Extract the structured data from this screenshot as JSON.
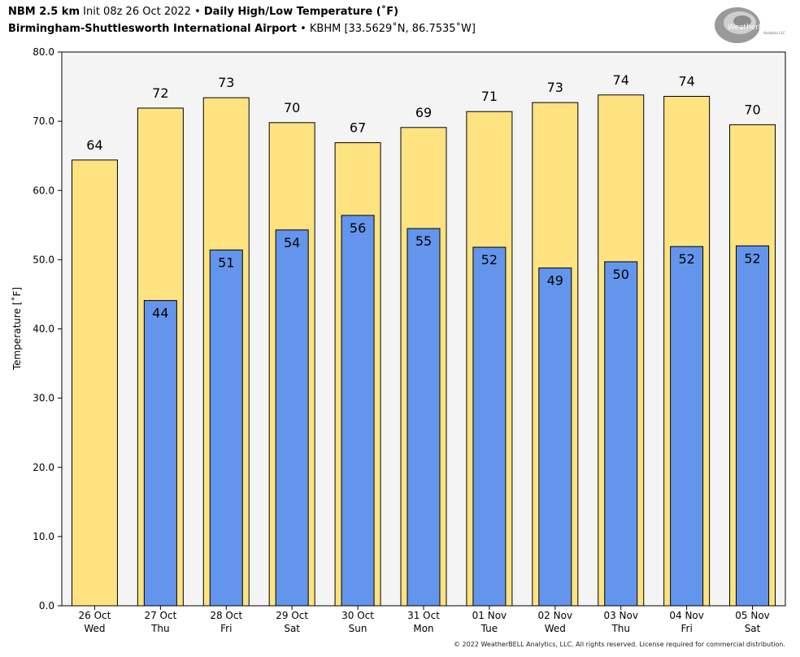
{
  "header": {
    "model": "NBM 2.5 km",
    "init": "Init 08z 26 Oct 2022",
    "bullet": "•",
    "product": "Daily High/Low Temperature (˚F)",
    "station_name": "Birmingham-Shuttlesworth International Airport",
    "station_info": "KBHM [33.5629˚N, 86.7535˚W]"
  },
  "logo": {
    "text": "WeatherBELL",
    "sub": "Analytics LLC",
    "icon": "weatherbell-swirl-logo"
  },
  "copyright": "© 2022 WeatherBELL Analytics, LLC. All rights reserved. License required for commercial distribution.",
  "colors": {
    "high": "#FEE380",
    "low": "#6495EC",
    "plot_bg": "#F4F4F4"
  },
  "chart_data": {
    "type": "bar",
    "title": "Daily High/Low Temperature (˚F)",
    "ylabel": "Temperature [˚F]",
    "xlabel": "",
    "ylim": [
      0,
      80
    ],
    "yticks": [
      "0.0",
      "10.0",
      "20.0",
      "30.0",
      "40.0",
      "50.0",
      "60.0",
      "70.0",
      "80.0"
    ],
    "grid": false,
    "categories": [
      {
        "date": "26 Oct",
        "day": "Wed"
      },
      {
        "date": "27 Oct",
        "day": "Thu"
      },
      {
        "date": "28 Oct",
        "day": "Fri"
      },
      {
        "date": "29 Oct",
        "day": "Sat"
      },
      {
        "date": "30 Oct",
        "day": "Sun"
      },
      {
        "date": "31 Oct",
        "day": "Mon"
      },
      {
        "date": "01 Nov",
        "day": "Tue"
      },
      {
        "date": "02 Nov",
        "day": "Wed"
      },
      {
        "date": "03 Nov",
        "day": "Thu"
      },
      {
        "date": "04 Nov",
        "day": "Fri"
      },
      {
        "date": "05 Nov",
        "day": "Sat"
      }
    ],
    "series": [
      {
        "name": "High",
        "values": [
          64.4,
          71.9,
          73.4,
          69.8,
          66.9,
          69.1,
          71.4,
          72.7,
          73.8,
          73.6,
          69.5
        ],
        "labels": [
          "64",
          "72",
          "73",
          "70",
          "67",
          "69",
          "71",
          "73",
          "74",
          "74",
          "70"
        ]
      },
      {
        "name": "Low",
        "values": [
          null,
          44.1,
          51.4,
          54.3,
          56.4,
          54.5,
          51.8,
          48.8,
          49.7,
          51.9,
          52.0
        ],
        "labels": [
          "",
          "44",
          "51",
          "54",
          "56",
          "55",
          "52",
          "49",
          "50",
          "52",
          "52"
        ]
      }
    ]
  }
}
